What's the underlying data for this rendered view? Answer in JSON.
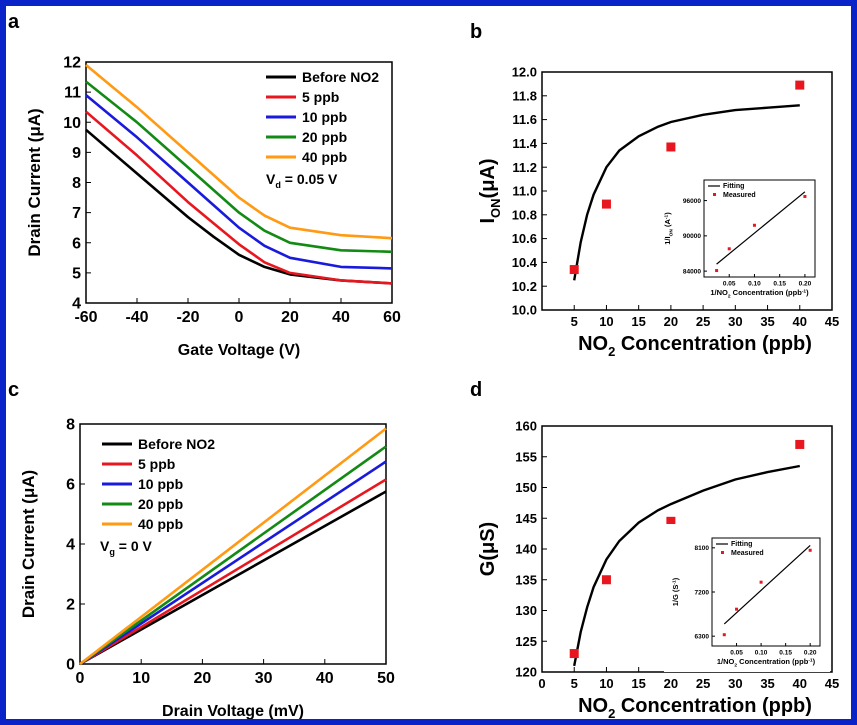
{
  "chart_data": [
    {
      "panel": "a",
      "type": "line",
      "xlabel": "Gate Voltage (V)",
      "ylabel": "Drain Current (μA)",
      "xlim": [
        -60,
        60
      ],
      "ylim": [
        4,
        12
      ],
      "xticks": [
        "-60",
        "-40",
        "-20",
        "0",
        "20",
        "40",
        "60"
      ],
      "yticks": [
        "4",
        "5",
        "6",
        "7",
        "8",
        "9",
        "10",
        "11",
        "12"
      ],
      "legend": "top-right",
      "annotation": {
        "main": "V",
        "sub": "d",
        "rest": " = 0.05 V"
      },
      "series": [
        {
          "name": "Before NO2",
          "color": "#000000",
          "x": [
            -60,
            -40,
            -20,
            -10,
            0,
            10,
            20,
            40,
            60
          ],
          "y": [
            9.75,
            8.3,
            6.85,
            6.2,
            5.6,
            5.2,
            4.95,
            4.75,
            4.65
          ]
        },
        {
          "name": "5 ppb",
          "color": "#e8171f",
          "x": [
            -60,
            -40,
            -20,
            -10,
            0,
            10,
            20,
            40,
            60
          ],
          "y": [
            10.35,
            8.9,
            7.35,
            6.65,
            5.95,
            5.35,
            5.0,
            4.75,
            4.65
          ]
        },
        {
          "name": "10 ppb",
          "color": "#1a1adc",
          "x": [
            -60,
            -40,
            -20,
            -10,
            0,
            10,
            20,
            40,
            60
          ],
          "y": [
            10.9,
            9.5,
            8.0,
            7.25,
            6.5,
            5.9,
            5.5,
            5.2,
            5.15
          ]
        },
        {
          "name": "20 ppb",
          "color": "#138a13",
          "x": [
            -60,
            -40,
            -20,
            -10,
            0,
            10,
            20,
            40,
            60
          ],
          "y": [
            11.35,
            10.0,
            8.5,
            7.75,
            7.0,
            6.4,
            6.0,
            5.75,
            5.7
          ]
        },
        {
          "name": "40 ppb",
          "color": "#ff9a12",
          "x": [
            -60,
            -40,
            -20,
            -10,
            0,
            10,
            20,
            40,
            60
          ],
          "y": [
            11.9,
            10.5,
            9.0,
            8.25,
            7.5,
            6.9,
            6.5,
            6.25,
            6.15
          ]
        }
      ]
    },
    {
      "panel": "b",
      "type": "scatter",
      "xlabel": {
        "main": "NO",
        "sub": "2",
        "rest": " Concentration (ppb)"
      },
      "ylabel": {
        "main": "I",
        "sub": "ON",
        "rest": "(μA)"
      },
      "xlim": [
        0,
        45
      ],
      "ylim": [
        10.0,
        12.0
      ],
      "xticks": [
        "5",
        "10",
        "15",
        "20",
        "25",
        "30",
        "35",
        "40",
        "45"
      ],
      "yticks": [
        "10.0",
        "10.2",
        "10.4",
        "10.6",
        "10.8",
        "11.0",
        "11.2",
        "11.4",
        "11.6",
        "11.8",
        "12.0"
      ],
      "points": {
        "x": [
          5,
          10,
          20,
          40
        ],
        "y": [
          10.34,
          10.89,
          11.37,
          11.89
        ]
      },
      "fit": {
        "x": [
          5,
          6,
          7,
          8,
          10,
          12,
          15,
          18,
          20,
          25,
          30,
          35,
          40
        ],
        "y": [
          10.25,
          10.57,
          10.8,
          10.97,
          11.2,
          11.34,
          11.46,
          11.54,
          11.58,
          11.64,
          11.68,
          11.7,
          11.72
        ]
      },
      "inset": {
        "xlabel": {
          "main": "1/NO",
          "sub": "2",
          "rest": " Concentration (ppb",
          "sup": "-1",
          "close": ")"
        },
        "ylabel": {
          "main": "1/I",
          "sub": "ON",
          "rest": " (A",
          "sup": "-1",
          "close": ")"
        },
        "xlim": [
          0.0,
          0.22
        ],
        "ylim": [
          83000,
          99500
        ],
        "xticks": [
          "0.05",
          "0.10",
          "0.15",
          "0.20"
        ],
        "yticks": [
          "84000",
          "90000",
          "96000"
        ],
        "legend": [
          "Fitting",
          "Measured"
        ],
        "points": {
          "x": [
            0.025,
            0.05,
            0.1,
            0.2
          ],
          "y": [
            84100,
            87800,
            91800,
            96700
          ]
        },
        "fit": {
          "x": [
            0.025,
            0.2
          ],
          "y": [
            85200,
            97500
          ]
        }
      }
    },
    {
      "panel": "c",
      "type": "line",
      "xlabel": "Drain Voltage (mV)",
      "ylabel": "Drain Current (μA)",
      "xlim": [
        0,
        50
      ],
      "ylim": [
        0,
        8
      ],
      "xticks": [
        "0",
        "10",
        "20",
        "30",
        "40",
        "50"
      ],
      "yticks": [
        "0",
        "2",
        "4",
        "6",
        "8"
      ],
      "legend": "top-left",
      "annotation": {
        "main": "V",
        "sub": "g",
        "rest": " = 0 V"
      },
      "series": [
        {
          "name": "Before NO2",
          "color": "#000000",
          "x": [
            0,
            50
          ],
          "y": [
            0,
            5.75
          ]
        },
        {
          "name": "5 ppb",
          "color": "#e8171f",
          "x": [
            0,
            50
          ],
          "y": [
            0,
            6.15
          ]
        },
        {
          "name": "10 ppb",
          "color": "#1a1adc",
          "x": [
            0,
            50
          ],
          "y": [
            0,
            6.75
          ]
        },
        {
          "name": "20 ppb",
          "color": "#138a13",
          "x": [
            0,
            50
          ],
          "y": [
            0,
            7.25
          ]
        },
        {
          "name": "40 ppb",
          "color": "#ff9a12",
          "x": [
            0,
            50
          ],
          "y": [
            0,
            7.85
          ]
        }
      ]
    },
    {
      "panel": "d",
      "type": "scatter",
      "xlabel": {
        "main": "NO",
        "sub": "2",
        "rest": " Concentration (ppb)"
      },
      "ylabel": {
        "main": "G(μS)",
        "sub": "",
        "rest": ""
      },
      "xlim": [
        0,
        45
      ],
      "ylim": [
        120,
        160
      ],
      "xticks": [
        "0",
        "5",
        "10",
        "15",
        "20",
        "25",
        "30",
        "35",
        "40",
        "45"
      ],
      "yticks": [
        "120",
        "125",
        "130",
        "135",
        "140",
        "145",
        "150",
        "155",
        "160"
      ],
      "points": {
        "x": [
          5,
          10,
          20,
          40
        ],
        "y": [
          123,
          135,
          144.5,
          157
        ]
      },
      "fit": {
        "x": [
          5,
          6,
          7,
          8,
          10,
          12,
          15,
          18,
          20,
          25,
          30,
          35,
          40
        ],
        "y": [
          121,
          126.5,
          130.5,
          133.8,
          138.3,
          141.3,
          144.3,
          146.3,
          147.3,
          149.5,
          151.3,
          152.5,
          153.5
        ]
      },
      "inset": {
        "xlabel": {
          "main": "1/NO",
          "sub": "2",
          "rest": " Concentration (ppb",
          "sup": "-1",
          "close": ")"
        },
        "ylabel": {
          "main": "1/G (S",
          "sub": "",
          "rest": "",
          "sup": "-1",
          "close": ")"
        },
        "xlim": [
          0.0,
          0.22
        ],
        "ylim": [
          6100,
          8300
        ],
        "xticks": [
          "0.05",
          "0.10",
          "0.15",
          "0.20"
        ],
        "yticks": [
          "6300",
          "7200",
          "8100"
        ],
        "legend": [
          "Fitting",
          "Measured"
        ],
        "points": {
          "x": [
            0.025,
            0.05,
            0.1,
            0.2
          ],
          "y": [
            6330,
            6850,
            7400,
            8050
          ]
        },
        "fit": {
          "x": [
            0.025,
            0.2
          ],
          "y": [
            6550,
            8150
          ]
        }
      }
    }
  ],
  "panel_letters": [
    "a",
    "b",
    "c",
    "d"
  ],
  "colors": {
    "frame": "#0a23c8",
    "marker": "#e8171f",
    "fit": "#000000"
  }
}
